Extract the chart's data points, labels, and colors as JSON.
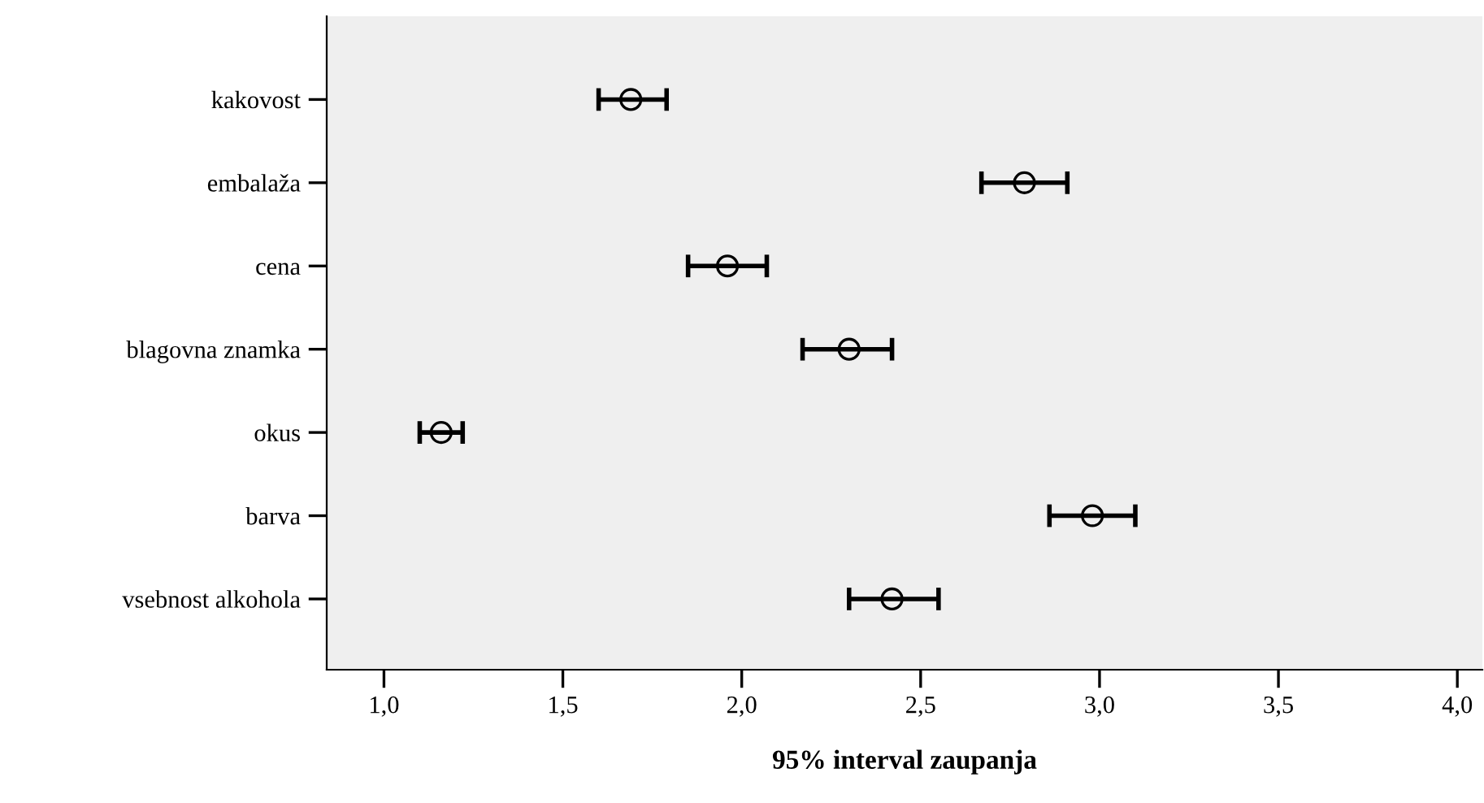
{
  "chart_data": {
    "type": "scatter",
    "orientation": "horizontal",
    "xlabel": "95% interval zaupanja",
    "categories": [
      "kakovost",
      "embalaža",
      "cena",
      "blagovna znamka",
      "okus",
      "barva",
      "vsebnost alkohola"
    ],
    "values": [
      1.69,
      2.79,
      1.96,
      2.3,
      1.16,
      2.98,
      2.42
    ],
    "errors": [
      [
        1.6,
        1.79
      ],
      [
        2.67,
        2.91
      ],
      [
        1.85,
        2.07
      ],
      [
        2.17,
        2.42
      ],
      [
        1.1,
        1.22
      ],
      [
        2.86,
        3.1
      ],
      [
        2.3,
        2.55
      ]
    ],
    "color": "#000000",
    "marker": "circle",
    "grid": false,
    "legend": false,
    "xlim": [
      0.84,
      4.07
    ],
    "xticks": [
      {
        "value": 1.0,
        "label": "1,0"
      },
      {
        "value": 1.5,
        "label": "1,5"
      },
      {
        "value": 2.0,
        "label": "2,0"
      },
      {
        "value": 2.5,
        "label": "2,5"
      },
      {
        "value": 3.0,
        "label": "3,0"
      },
      {
        "value": 3.5,
        "label": "3,5"
      },
      {
        "value": 4.0,
        "label": "4,0"
      }
    ]
  }
}
